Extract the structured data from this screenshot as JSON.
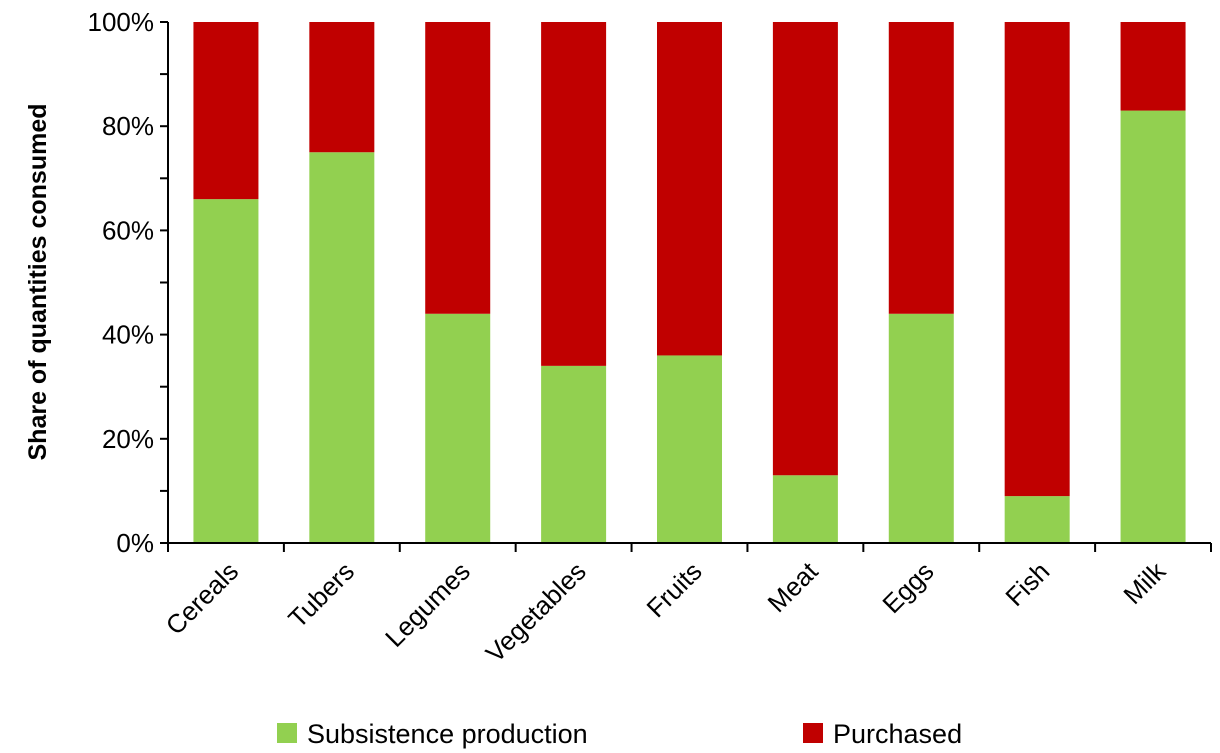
{
  "chart_data": {
    "type": "bar",
    "stacked": true,
    "categories": [
      "Cereals",
      "Tubers",
      "Legumes",
      "Vegetables",
      "Fruits",
      "Meat",
      "Eggs",
      "Fish",
      "Milk"
    ],
    "series": [
      {
        "name": "Subsistence production",
        "color": "#92d050",
        "values": [
          66,
          75,
          44,
          34,
          36,
          13,
          44,
          9,
          83
        ]
      },
      {
        "name": "Purchased",
        "color": "#c00000",
        "values": [
          34,
          25,
          56,
          66,
          64,
          87,
          56,
          91,
          17
        ]
      }
    ],
    "ylabel": "Share of quantities consumed",
    "xlabel": "",
    "ylim": [
      0,
      100
    ],
    "yticks": [
      "0%",
      "20%",
      "40%",
      "60%",
      "80%",
      "100%"
    ],
    "grid": false,
    "legend_position": "bottom"
  }
}
